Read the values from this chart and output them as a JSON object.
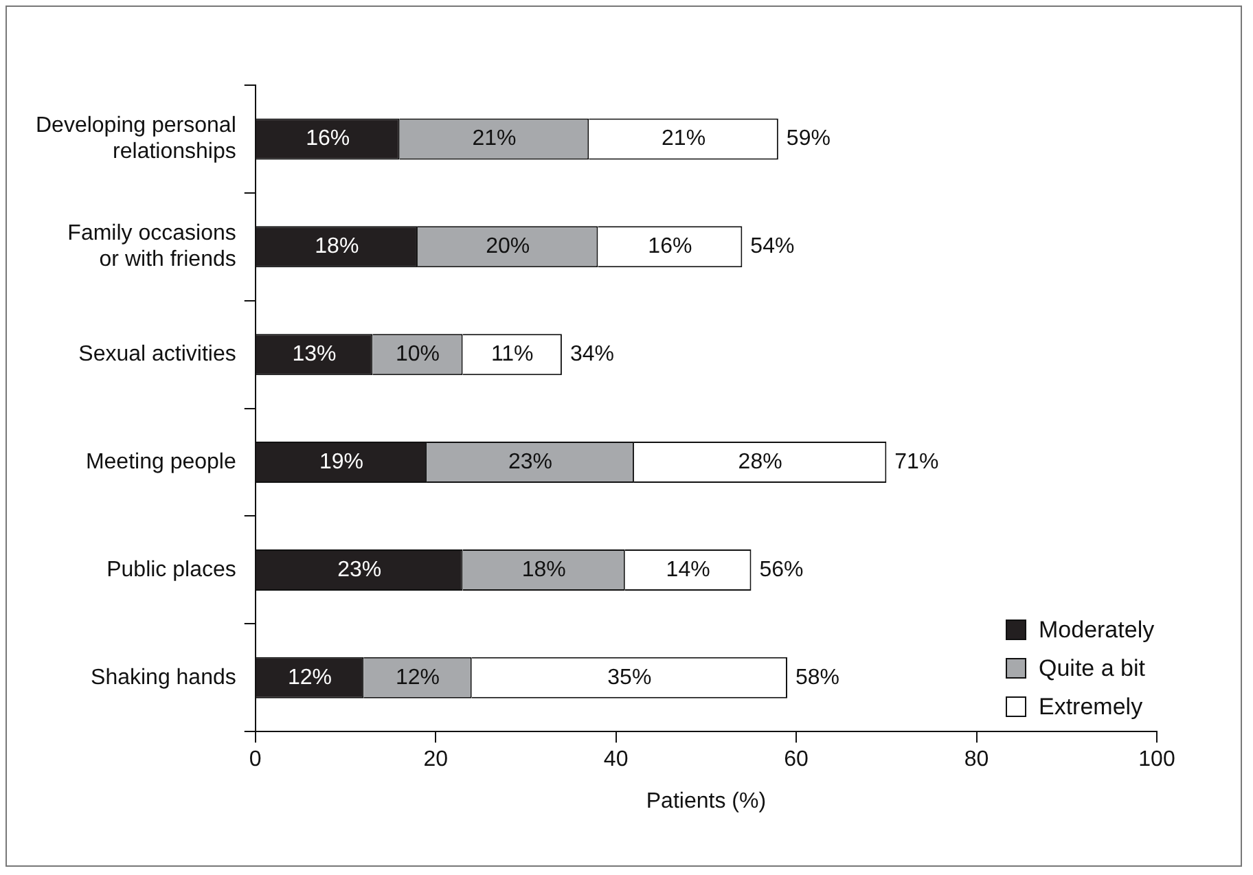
{
  "chart_data": {
    "type": "bar",
    "orientation": "horizontal",
    "stacked": true,
    "categories": [
      "Developing personal\nrelationships",
      "Family occasions\nor with friends",
      "Sexual activities",
      "Meeting people",
      "Public places",
      "Shaking hands"
    ],
    "series": [
      {
        "name": "Moderately",
        "color": "#231f20",
        "values": [
          16,
          18,
          13,
          19,
          23,
          12
        ],
        "value_labels": [
          "16%",
          "18%",
          "13%",
          "19%",
          "23%",
          "12%"
        ]
      },
      {
        "name": "Quite a bit",
        "color": "#a7a9ac",
        "values": [
          21,
          20,
          10,
          23,
          18,
          12
        ],
        "value_labels": [
          "21%",
          "20%",
          "10%",
          "23%",
          "18%",
          "12%"
        ]
      },
      {
        "name": "Extremely",
        "color": "#ffffff",
        "values": [
          21,
          16,
          11,
          28,
          14,
          35
        ],
        "value_labels": [
          "21%",
          "16%",
          "11%",
          "28%",
          "14%",
          "35%"
        ]
      }
    ],
    "totals": [
      "59%",
      "54%",
      "34%",
      "71%",
      "56%",
      "58%"
    ],
    "xlabel": "Patients (%)",
    "xlim": [
      0,
      100
    ],
    "xticks": [
      0,
      20,
      40,
      60,
      80,
      100
    ],
    "grid": false,
    "legend": "bottom right"
  }
}
